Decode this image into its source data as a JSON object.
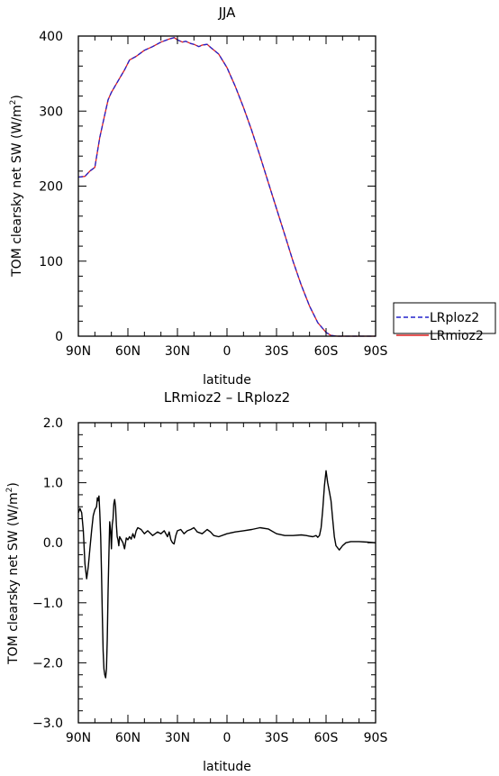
{
  "chart_data": [
    {
      "type": "line",
      "title": "JJA",
      "xlabel": "latitude",
      "ylabel_main": "TOM clearsky net SW (W/m",
      "ylabel_sup": "2",
      "ylabel_close": ")",
      "xlim": [
        90,
        -90
      ],
      "ylim": [
        0,
        400
      ],
      "xticks": [
        90,
        60,
        30,
        0,
        -30,
        -60,
        -90
      ],
      "xtick_labels": [
        "90N",
        "60N",
        "30N",
        "0",
        "30S",
        "60S",
        "90S"
      ],
      "yticks": [
        0,
        100,
        200,
        300,
        400
      ],
      "ytick_labels": [
        "0",
        "100",
        "200",
        "300",
        "400"
      ],
      "legend": {
        "placement": "right",
        "entries": [
          {
            "label": "LRploz2",
            "color": "#2222cc",
            "dash": true
          },
          {
            "label": "LRmioz2",
            "color": "#e02020",
            "dash": false
          }
        ]
      },
      "series": [
        {
          "name": "LRploz2",
          "color": "#2222cc",
          "x": [
            90,
            86,
            83,
            80,
            77,
            74,
            72,
            70,
            66,
            62,
            59,
            55,
            50,
            45,
            40,
            35,
            32,
            30,
            27,
            25,
            22,
            20,
            17,
            15,
            12,
            10,
            5,
            0,
            -5,
            -10,
            -15,
            -20,
            -25,
            -30,
            -35,
            -40,
            -45,
            -50,
            -55,
            -60,
            -63,
            -65,
            -67,
            -70,
            -75,
            -80,
            -90
          ],
          "y": [
            212,
            213,
            220,
            225,
            265,
            295,
            315,
            325,
            340,
            355,
            368,
            373,
            381,
            386,
            392,
            396,
            398,
            395,
            392,
            393,
            390,
            389,
            386,
            388,
            389,
            385,
            376,
            358,
            333,
            305,
            274,
            240,
            205,
            170,
            135,
            100,
            68,
            40,
            18,
            5,
            1,
            0.5,
            0,
            0,
            0,
            0,
            0
          ]
        },
        {
          "name": "LRmioz2",
          "color": "#e02020",
          "x": [
            90,
            86,
            83,
            80,
            77,
            74,
            72,
            70,
            66,
            62,
            59,
            55,
            50,
            45,
            40,
            35,
            32,
            30,
            27,
            25,
            22,
            20,
            17,
            15,
            12,
            10,
            5,
            0,
            -5,
            -10,
            -15,
            -20,
            -25,
            -30,
            -35,
            -40,
            -45,
            -50,
            -55,
            -60,
            -63,
            -65,
            -67,
            -70,
            -75,
            -80,
            -90
          ],
          "y": [
            212,
            213,
            220,
            225,
            265,
            295,
            315,
            325,
            340,
            355,
            368,
            373,
            381,
            386,
            392,
            396,
            398,
            395,
            392,
            393,
            390,
            389,
            386,
            388,
            389,
            385,
            376,
            358,
            333,
            305,
            274,
            240,
            205,
            170,
            135,
            100,
            68,
            40,
            18,
            5,
            1,
            0.5,
            0,
            0,
            0,
            0,
            0
          ]
        }
      ]
    },
    {
      "type": "line",
      "title": "LRmioz2 – LRploz2",
      "xlabel": "latitude",
      "ylabel_main": "TOM clearsky net SW (W/m",
      "ylabel_sup": "2",
      "ylabel_close": ")",
      "xlim": [
        90,
        -90
      ],
      "ylim": [
        -3.0,
        2.0
      ],
      "xticks": [
        90,
        60,
        30,
        0,
        -30,
        -60,
        -90
      ],
      "xtick_labels": [
        "90N",
        "60N",
        "30N",
        "0",
        "30S",
        "60S",
        "90S"
      ],
      "yticks": [
        -3.0,
        -2.0,
        -1.0,
        0.0,
        1.0,
        2.0
      ],
      "ytick_labels": [
        "−3.0",
        "−2.0",
        "−1.0",
        "0.0",
        "1.0",
        "2.0"
      ],
      "series": [
        {
          "name": "",
          "color": "#000000",
          "x": [
            90,
            89,
            88,
            87,
            86,
            85,
            84,
            83,
            82,
            81,
            80,
            79,
            78.5,
            78,
            77.5,
            77,
            76.5,
            76,
            75.5,
            75,
            74.5,
            74,
            73.5,
            73,
            72.5,
            72,
            71.5,
            71,
            70.5,
            70,
            69.5,
            69,
            68.5,
            68,
            67.5,
            67,
            66.5,
            66,
            65.5,
            65,
            64,
            63,
            62,
            61,
            60,
            59,
            58,
            57,
            56,
            55,
            54,
            52,
            50,
            48,
            45,
            42,
            40,
            38,
            36,
            35,
            34,
            33,
            32,
            31,
            30,
            28,
            26,
            24,
            22,
            20,
            18,
            15,
            12,
            10,
            8,
            5,
            0,
            -5,
            -10,
            -15,
            -20,
            -25,
            -30,
            -35,
            -40,
            -45,
            -48,
            -50,
            -52,
            -54,
            -55,
            -56,
            -57,
            -58,
            -59,
            -60,
            -61,
            -62,
            -63,
            -64,
            -65,
            -66,
            -68,
            -70,
            -72,
            -75,
            -80,
            -85,
            -90
          ],
          "y": [
            0.5,
            0.57,
            0.5,
            0.2,
            -0.35,
            -0.6,
            -0.4,
            -0.1,
            0.2,
            0.45,
            0.55,
            0.6,
            0.75,
            0.7,
            0.78,
            0.5,
            0.1,
            -0.5,
            -1.2,
            -1.8,
            -2.1,
            -2.2,
            -2.25,
            -2.1,
            -1.6,
            -0.8,
            -0.2,
            0.35,
            0.2,
            -0.1,
            0.3,
            0.4,
            0.65,
            0.72,
            0.6,
            0.3,
            0.1,
            0.05,
            -0.05,
            0.1,
            0.05,
            0.0,
            -0.1,
            0.08,
            0.05,
            0.1,
            0.06,
            0.15,
            0.08,
            0.2,
            0.25,
            0.22,
            0.15,
            0.2,
            0.12,
            0.18,
            0.15,
            0.2,
            0.1,
            0.18,
            0.05,
            0.0,
            -0.02,
            0.12,
            0.2,
            0.22,
            0.15,
            0.2,
            0.22,
            0.25,
            0.18,
            0.15,
            0.22,
            0.18,
            0.12,
            0.1,
            0.15,
            0.18,
            0.2,
            0.22,
            0.25,
            0.23,
            0.15,
            0.12,
            0.12,
            0.13,
            0.12,
            0.11,
            0.1,
            0.12,
            0.09,
            0.12,
            0.25,
            0.55,
            0.95,
            1.2,
            1.0,
            0.85,
            0.7,
            0.4,
            0.1,
            -0.05,
            -0.12,
            -0.05,
            0.0,
            0.02,
            0.02,
            0.01,
            0.0
          ]
        }
      ]
    }
  ]
}
